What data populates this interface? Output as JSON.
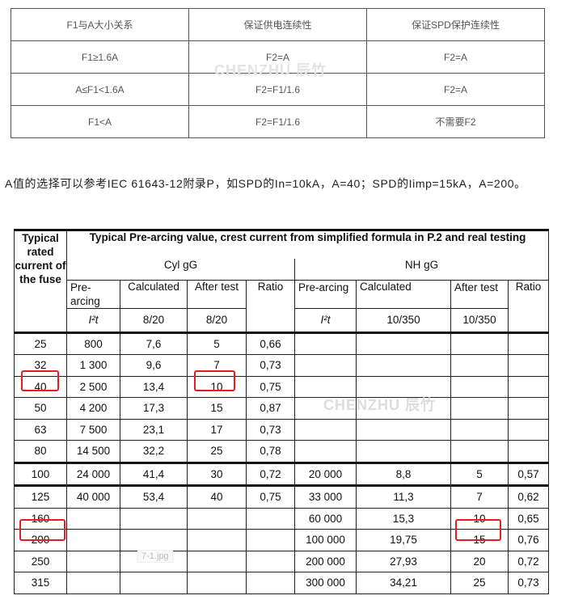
{
  "table1": {
    "headers": [
      "F1与A大小关系",
      "保证供电连续性",
      "保证SPD保护连续性"
    ],
    "rows": [
      [
        "F1≥1.6A",
        "F2=A",
        "F2=A"
      ],
      [
        "A≤F1<1.6A",
        "F2=F1/1.6",
        "F2=A"
      ],
      [
        "F1<A",
        "F2=F1/1.6",
        "不需要F2"
      ]
    ]
  },
  "watermark": "CHENZHU 辰竹",
  "paragraph": "A值的选择可以参考IEC 61643-12附录P，如SPD的In=10kA，A=40；SPD的Iimp=15kA，A=200。",
  "table2": {
    "rated_header": "Typical rated current of the fuse",
    "title": "Typical Pre-arcing value, crest current from simplified formula in P.2 and real testing",
    "group1": "Cyl gG",
    "group2": "NH gG",
    "cols": {
      "pre": "Pre-arcing",
      "calc": "Calculated",
      "after": "After test",
      "after2": "After test",
      "ratio": "Ratio",
      "i2t": "I²t",
      "w1": "8/20",
      "w2": "10/350"
    },
    "rows": [
      [
        "25",
        "800",
        "7,6",
        "5",
        "0,66",
        "",
        "",
        "",
        ""
      ],
      [
        "32",
        "1 300",
        "9,6",
        "7",
        "0,73",
        "",
        "",
        "",
        ""
      ],
      [
        "40",
        "2 500",
        "13,4",
        "10",
        "0,75",
        "",
        "",
        "",
        ""
      ],
      [
        "50",
        "4 200",
        "17,3",
        "15",
        "0,87",
        "",
        "",
        "",
        ""
      ],
      [
        "63",
        "7 500",
        "23,1",
        "17",
        "0,73",
        "",
        "",
        "",
        ""
      ],
      [
        "80",
        "14 500",
        "32,2",
        "25",
        "0,78",
        "",
        "",
        "",
        ""
      ],
      [
        "100",
        "24 000",
        "41,4",
        "30",
        "0,72",
        "20 000",
        "8,8",
        "5",
        "0,57"
      ],
      [
        "125",
        "40 000",
        "53,4",
        "40",
        "0,75",
        "33 000",
        "11,3",
        "7",
        "0,62"
      ],
      [
        "160",
        "",
        "",
        "",
        "",
        "60 000",
        "15,3",
        "10",
        "0,65"
      ],
      [
        "200",
        "",
        "",
        "",
        "",
        "100 000",
        "19,75",
        "15",
        "0,76"
      ],
      [
        "250",
        "",
        "",
        "",
        "",
        "200 000",
        "27,93",
        "20",
        "0,72"
      ],
      [
        "315",
        "",
        "",
        "",
        "",
        "300 000",
        "34,21",
        "25",
        "0,73"
      ]
    ]
  },
  "image_label": "7-1.jpg",
  "highlight_color": "#e02020"
}
